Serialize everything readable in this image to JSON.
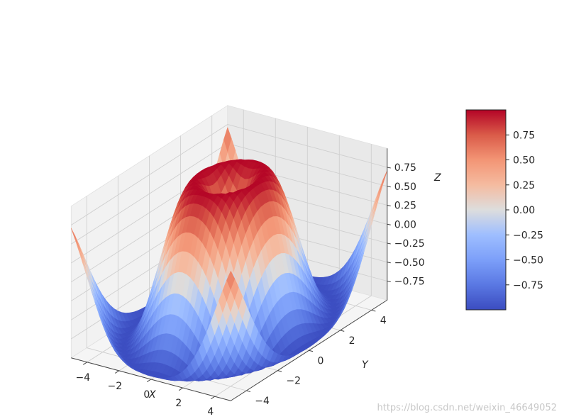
{
  "chart_data": {
    "type": "surface3d",
    "title": "",
    "function": "sin(sqrt(x^2 + y^2))",
    "colormap": "coolwarm",
    "xlabel": "X",
    "ylabel": "Y",
    "zlabel": "Z",
    "xlim": [
      -5,
      5
    ],
    "ylim": [
      -5,
      5
    ],
    "zlim": [
      -1,
      1
    ],
    "x_ticks": [
      -4,
      -2,
      0,
      2,
      4
    ],
    "y_ticks": [
      -4,
      -2,
      0,
      2,
      4
    ],
    "z_ticks": [
      -0.75,
      -0.5,
      -0.25,
      0.0,
      0.25,
      0.5,
      0.75
    ],
    "x_tick_labels": [
      "−4",
      "−2",
      "0",
      "2",
      "4"
    ],
    "y_tick_labels": [
      "−4",
      "−2",
      "0",
      "2",
      "4"
    ],
    "z_tick_labels": [
      "−0.75",
      "−0.50",
      "−0.25",
      "0.00",
      "0.25",
      "0.50",
      "0.75"
    ],
    "colorbar": {
      "range": [
        -1,
        1
      ],
      "ticks": [
        -0.75,
        -0.5,
        -0.25,
        0.0,
        0.25,
        0.5,
        0.75
      ],
      "tick_labels": [
        "−0.75",
        "−0.50",
        "−0.25",
        "0.00",
        "0.25",
        "0.50",
        "0.75"
      ]
    },
    "grid": true
  },
  "watermark": "https://blog.csdn.net/weixin_46649052"
}
